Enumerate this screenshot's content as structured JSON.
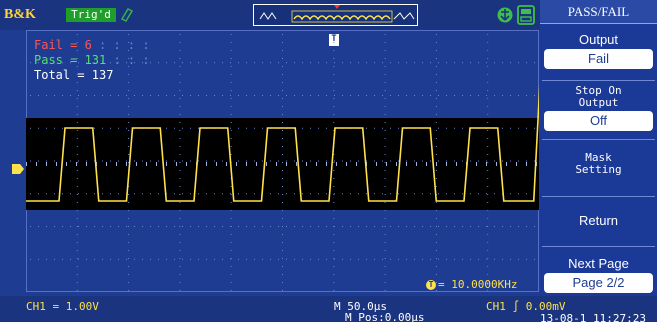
{
  "topbar": {
    "brand": "B&K",
    "trigger_status": "Trig'd"
  },
  "passfail": {
    "fail": "Fail = 6",
    "pass": "Pass = 131",
    "total": "Total = 137"
  },
  "measure": {
    "frequency": "= 10.0000KHz"
  },
  "status": {
    "ch1_scale": "CH1 = 1.00V",
    "timebase": "M 50.0μs",
    "mpos": "M Pos:0.00μs",
    "trigger": "CH1 ∫ 0.00mV",
    "datetime": "13-08-1 11:27:23"
  },
  "menu": {
    "title": "PASS/FAIL",
    "output_label": "Output",
    "output_value": "Fail",
    "stop_label_1": "Stop On",
    "stop_label_2": "Output",
    "stop_value": "Off",
    "mask_label_1": "Mask",
    "mask_label_2": "Setting",
    "return_label": "Return",
    "next_label": "Next Page",
    "page_value": "Page 2/2"
  },
  "colors": {
    "background": "#1f3c93",
    "trace": "#ffe14a",
    "mask": "#000000",
    "fail": "#ff5555",
    "pass": "#55e06a"
  },
  "icons": [
    "trigger-icon",
    "memory-waveform-icon",
    "usb-icon",
    "save-icon",
    "trigger-marker-icon",
    "channel-marker-icon",
    "frequency-icon"
  ]
}
